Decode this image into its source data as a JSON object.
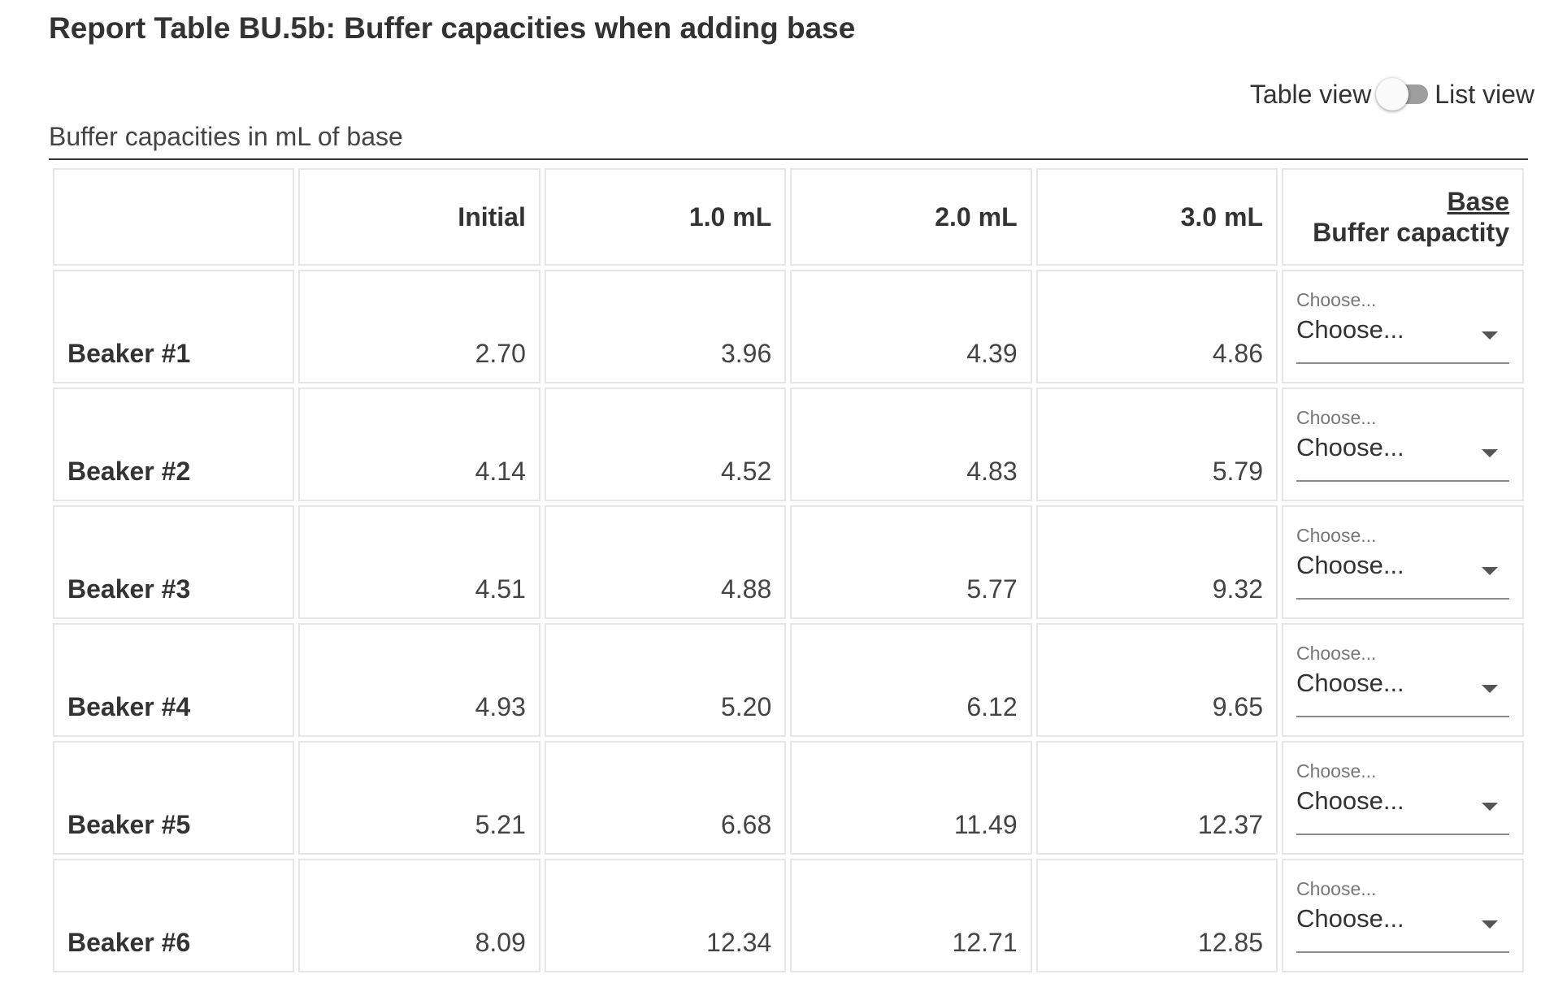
{
  "title": "Report Table BU.5b: Buffer capacities when adding base",
  "view_toggle": {
    "left_label": "Table view",
    "right_label": "List view"
  },
  "caption": "Buffer capacities in mL of base",
  "table": {
    "columns": [
      "",
      "Initial",
      "1.0 mL",
      "2.0 mL",
      "3.0 mL"
    ],
    "last_column": {
      "link_label": "Base",
      "label": "Buffer capactity"
    },
    "rows": [
      {
        "label": "Beaker #1",
        "values": [
          "2.70",
          "3.96",
          "4.39",
          "4.86"
        ],
        "select": {
          "floating_label": "Choose...",
          "value": "Choose..."
        }
      },
      {
        "label": "Beaker #2",
        "values": [
          "4.14",
          "4.52",
          "4.83",
          "5.79"
        ],
        "select": {
          "floating_label": "Choose...",
          "value": "Choose..."
        }
      },
      {
        "label": "Beaker #3",
        "values": [
          "4.51",
          "4.88",
          "5.77",
          "9.32"
        ],
        "select": {
          "floating_label": "Choose...",
          "value": "Choose..."
        }
      },
      {
        "label": "Beaker #4",
        "values": [
          "4.93",
          "5.20",
          "6.12",
          "9.65"
        ],
        "select": {
          "floating_label": "Choose...",
          "value": "Choose..."
        }
      },
      {
        "label": "Beaker #5",
        "values": [
          "5.21",
          "6.68",
          "11.49",
          "12.37"
        ],
        "select": {
          "floating_label": "Choose...",
          "value": "Choose..."
        }
      },
      {
        "label": "Beaker #6",
        "values": [
          "8.09",
          "12.34",
          "12.71",
          "12.85"
        ],
        "select": {
          "floating_label": "Choose...",
          "value": "Choose..."
        }
      }
    ]
  }
}
